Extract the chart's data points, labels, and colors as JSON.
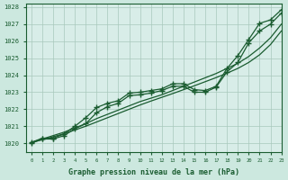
{
  "title": "Graphe pression niveau de la mer (hPa)",
  "ylabel_range": [
    1019.5,
    1028.2
  ],
  "xlabel_range": [
    -0.5,
    23
  ],
  "background_color": "#cce8df",
  "plot_background": "#d8ede8",
  "grid_color": "#a8c8bc",
  "line_color": "#1a5c30",
  "yticks": [
    1020,
    1021,
    1022,
    1023,
    1024,
    1025,
    1026,
    1027,
    1028
  ],
  "line1_smooth": [
    1020.05,
    1020.25,
    1020.45,
    1020.65,
    1020.9,
    1021.15,
    1021.45,
    1021.7,
    1021.95,
    1022.2,
    1022.45,
    1022.65,
    1022.85,
    1023.1,
    1023.35,
    1023.6,
    1023.85,
    1024.1,
    1024.4,
    1024.7,
    1025.1,
    1025.6,
    1026.2,
    1027.0
  ],
  "line2_smooth": [
    1020.05,
    1020.2,
    1020.38,
    1020.56,
    1020.78,
    1021.0,
    1021.25,
    1021.5,
    1021.75,
    1022.0,
    1022.25,
    1022.48,
    1022.7,
    1022.92,
    1023.15,
    1023.38,
    1023.62,
    1023.86,
    1024.12,
    1024.4,
    1024.75,
    1025.2,
    1025.8,
    1026.6
  ],
  "line3_var": [
    1020.05,
    1020.3,
    1020.3,
    1020.55,
    1021.0,
    1021.5,
    1022.1,
    1022.35,
    1022.5,
    1022.95,
    1023.0,
    1023.1,
    1023.2,
    1023.5,
    1023.5,
    1023.15,
    1023.1,
    1023.35,
    1024.4,
    1025.15,
    1026.1,
    1027.05,
    1027.25,
    1027.85
  ],
  "line4_var": [
    1020.0,
    1020.25,
    1020.25,
    1020.45,
    1020.85,
    1021.15,
    1021.8,
    1022.15,
    1022.35,
    1022.8,
    1022.85,
    1022.95,
    1023.1,
    1023.35,
    1023.35,
    1023.0,
    1023.0,
    1023.3,
    1024.2,
    1024.75,
    1025.9,
    1026.6,
    1027.0,
    1027.65
  ]
}
